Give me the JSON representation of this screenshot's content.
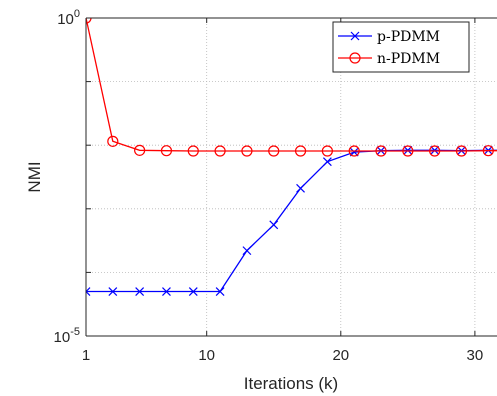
{
  "chart_data": {
    "type": "line",
    "xlabel": "Iterations (k)",
    "ylabel": "NMI",
    "xlim": [
      1,
      32
    ],
    "ylim": [
      1e-05,
      1
    ],
    "yscale": "log",
    "grid": "dotted",
    "legend_position": "top-right",
    "x_ticks": [
      {
        "value": 1,
        "label": "1"
      },
      {
        "value": 10,
        "label": "10"
      },
      {
        "value": 20,
        "label": "20"
      },
      {
        "value": 30,
        "label": "30"
      }
    ],
    "y_ticks": [
      {
        "value": 1e-05,
        "base": "10",
        "exponent": "-5"
      },
      {
        "value": 1,
        "base": "10",
        "exponent": "0"
      }
    ],
    "y_gridlines": [
      0.0001,
      0.001,
      0.01,
      0.1
    ],
    "series": [
      {
        "name": "p-PDMM",
        "color": "#0000ff",
        "marker": "x",
        "x": [
          1,
          3,
          5,
          7,
          9,
          11,
          13,
          15,
          17,
          19,
          21,
          23,
          25,
          27,
          29,
          31,
          33
        ],
        "y": [
          5e-05,
          5e-05,
          5e-05,
          5e-05,
          5e-05,
          5e-05,
          0.00022,
          0.00056,
          0.0021,
          0.0055,
          0.0078,
          0.0082,
          0.0083,
          0.0083,
          0.0082,
          0.0083,
          0.0083
        ]
      },
      {
        "name": "n-PDMM",
        "color": "#ff0000",
        "marker": "circle",
        "x": [
          1,
          3,
          5,
          7,
          9,
          11,
          13,
          15,
          17,
          19,
          21,
          23,
          25,
          27,
          29,
          31,
          33
        ],
        "y": [
          1,
          0.0115,
          0.0083,
          0.0082,
          0.0081,
          0.0081,
          0.0081,
          0.0081,
          0.0081,
          0.0081,
          0.0081,
          0.0081,
          0.0081,
          0.0081,
          0.0081,
          0.0082,
          0.0082
        ]
      }
    ]
  }
}
